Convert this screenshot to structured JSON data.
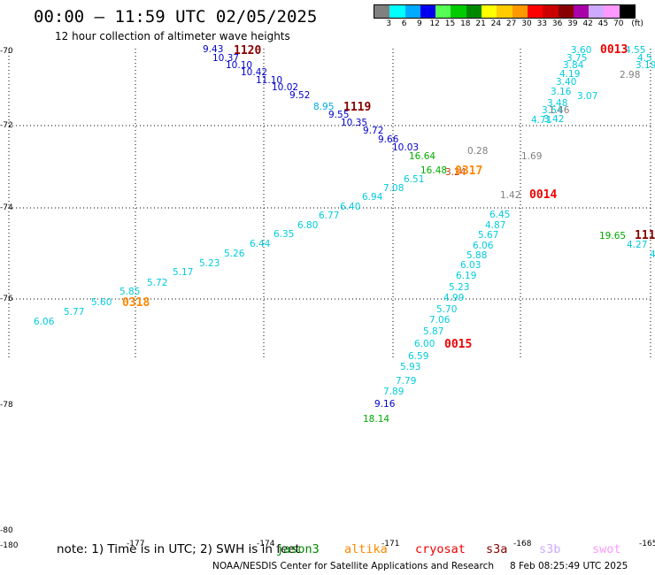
{
  "header": {
    "title": "00:00 – 11:59 UTC 02/05/2025",
    "subtitle": "12 hour collection of altimeter wave heights"
  },
  "legend": {
    "colors": [
      "#808080",
      "#00ffff",
      "#00aaff",
      "#0000ee",
      "#55ff55",
      "#00cc00",
      "#008800",
      "#ffff00",
      "#ffcc00",
      "#ff9900",
      "#ff0000",
      "#cc0000",
      "#880000",
      "#aa00aa",
      "#ccaaff",
      "#ff99ff",
      "#000000"
    ],
    "ticks": [
      "3",
      "6",
      "9",
      "12",
      "15",
      "18",
      "21",
      "24",
      "27",
      "30",
      "33",
      "36",
      "39",
      "42",
      "45",
      "70"
    ],
    "unit": "(ft)"
  },
  "axes": {
    "lat_labels": [
      "-70",
      "-72",
      "-74",
      "-76",
      "-78",
      "-80"
    ],
    "lon_labels": [
      "-180",
      "-177",
      "-174",
      "-171",
      "-168",
      "-165"
    ]
  },
  "tracks": [
    {
      "id": "1120",
      "color": "#880000",
      "points": [
        {
          "v": "9.43",
          "c": "#0000cc"
        },
        {
          "v": "10.37",
          "c": "#0000cc"
        },
        {
          "v": "10.10",
          "c": "#0000cc"
        },
        {
          "v": "10.42",
          "c": "#0000cc"
        },
        {
          "v": "11.10",
          "c": "#0000cc"
        },
        {
          "v": "10.02",
          "c": "#0000cc"
        },
        {
          "v": "9.52",
          "c": "#0000cc"
        }
      ]
    },
    {
      "id": "1119",
      "color": "#880000",
      "points": [
        {
          "v": "8.95",
          "c": "#00aadd"
        },
        {
          "v": "9.55",
          "c": "#0000cc"
        },
        {
          "v": "10.35",
          "c": "#0000cc"
        },
        {
          "v": "9.72",
          "c": "#0000cc"
        },
        {
          "v": "9.66",
          "c": "#0000cc"
        },
        {
          "v": "10.03",
          "c": "#0000cc"
        },
        {
          "v": "16.64",
          "c": "#00aa00"
        },
        {
          "v": "16.48",
          "c": "#00aa00"
        },
        {
          "v": "0.28",
          "c": "#808080"
        },
        {
          "v": "3.24",
          "c": "#cc3300"
        },
        {
          "v": "1.69",
          "c": "#808080"
        }
      ]
    },
    {
      "id": "0317",
      "color": "#ff8800",
      "points": []
    },
    {
      "id": "0318",
      "color": "#ff8800",
      "points": [
        {
          "v": "6.51",
          "c": "#00ccdd"
        },
        {
          "v": "7.08",
          "c": "#00ccdd"
        },
        {
          "v": "6.94",
          "c": "#00ccdd"
        },
        {
          "v": "6.40",
          "c": "#00ccdd"
        },
        {
          "v": "6.77",
          "c": "#00ccdd"
        },
        {
          "v": "6.80",
          "c": "#00ccdd"
        },
        {
          "v": "6.35",
          "c": "#00ccdd"
        },
        {
          "v": "6.44",
          "c": "#00ccdd"
        },
        {
          "v": "5.26",
          "c": "#00ccdd"
        },
        {
          "v": "5.23",
          "c": "#00ccdd"
        },
        {
          "v": "5.17",
          "c": "#00ccdd"
        },
        {
          "v": "5.72",
          "c": "#00ccdd"
        },
        {
          "v": "5.85",
          "c": "#00ccdd"
        },
        {
          "v": "5.60",
          "c": "#00ccdd"
        },
        {
          "v": "5.77",
          "c": "#00ccdd"
        },
        {
          "v": "6.06",
          "c": "#00ccdd"
        }
      ]
    },
    {
      "id": "0014",
      "color": "#ee0000",
      "points": [
        {
          "v": "1.42",
          "c": "#808080"
        }
      ]
    },
    {
      "id": "0015",
      "color": "#ee0000",
      "points": [
        {
          "v": "6.45",
          "c": "#00ccdd"
        },
        {
          "v": "4.87",
          "c": "#00ccdd"
        },
        {
          "v": "5.67",
          "c": "#00ccdd"
        },
        {
          "v": "6.06",
          "c": "#00ccdd"
        },
        {
          "v": "5.88",
          "c": "#00ccdd"
        },
        {
          "v": "6.03",
          "c": "#00ccdd"
        },
        {
          "v": "6.19",
          "c": "#00ccdd"
        },
        {
          "v": "5.23",
          "c": "#00ccdd"
        },
        {
          "v": "4.99",
          "c": "#00ccdd"
        },
        {
          "v": "5.70",
          "c": "#00ccdd"
        },
        {
          "v": "7.06",
          "c": "#00ccdd"
        },
        {
          "v": "5.87",
          "c": "#00ccdd"
        },
        {
          "v": "6.00",
          "c": "#00ccdd"
        },
        {
          "v": "6.59",
          "c": "#00ccdd"
        },
        {
          "v": "5.93",
          "c": "#00ccdd"
        },
        {
          "v": "7.79",
          "c": "#00ccdd"
        },
        {
          "v": "7.89",
          "c": "#00ccdd"
        },
        {
          "v": "9.16",
          "c": "#0000cc"
        },
        {
          "v": "18.14",
          "c": "#00aa00"
        }
      ]
    },
    {
      "id": "0013",
      "color": "#ee0000",
      "points": [
        {
          "v": "3.60",
          "c": "#00ccdd"
        },
        {
          "v": "3.75",
          "c": "#00ccdd"
        },
        {
          "v": "3.84",
          "c": "#00ccdd"
        },
        {
          "v": "4.19",
          "c": "#00ccdd"
        },
        {
          "v": "3.40",
          "c": "#00ccdd"
        },
        {
          "v": "3.16",
          "c": "#00ccdd"
        },
        {
          "v": "3.07",
          "c": "#00ccdd"
        },
        {
          "v": "3.48",
          "c": "#00ccdd"
        },
        {
          "v": "3.64",
          "c": "#00ccdd"
        },
        {
          "v": "1.46",
          "c": "#808080"
        },
        {
          "v": "4.71",
          "c": "#00ccdd"
        },
        {
          "v": "3.42",
          "c": "#00ccdd"
        },
        {
          "v": "4.55",
          "c": "#00ccdd"
        },
        {
          "v": "4.5",
          "c": "#00ccdd"
        },
        {
          "v": "3.19",
          "c": "#00ccdd"
        },
        {
          "v": "2.98",
          "c": "#808080"
        }
      ]
    },
    {
      "id": "111",
      "color": "#880000",
      "points": [
        {
          "v": "19.65",
          "c": "#00aa00"
        },
        {
          "v": "4.27",
          "c": "#00ccdd"
        },
        {
          "v": "4",
          "c": "#00ccdd"
        }
      ]
    }
  ],
  "note": {
    "text": "note: 1) Time is in UTC; 2) SWH is in feet",
    "satellites": [
      {
        "name": "jason3",
        "color": "#008800"
      },
      {
        "name": "altika",
        "color": "#ff8800"
      },
      {
        "name": "cryosat",
        "color": "#ee0000"
      },
      {
        "name": "s3a",
        "color": "#880000"
      },
      {
        "name": "s3b",
        "color": "#ccaaff"
      },
      {
        "name": "swot",
        "color": "#ff99ff"
      }
    ]
  },
  "footer": {
    "credit": "NOAA/NESDIS Center for Satellite Applications and Research",
    "timestamp": "8 Feb 08:25:49 UTC 2025"
  }
}
